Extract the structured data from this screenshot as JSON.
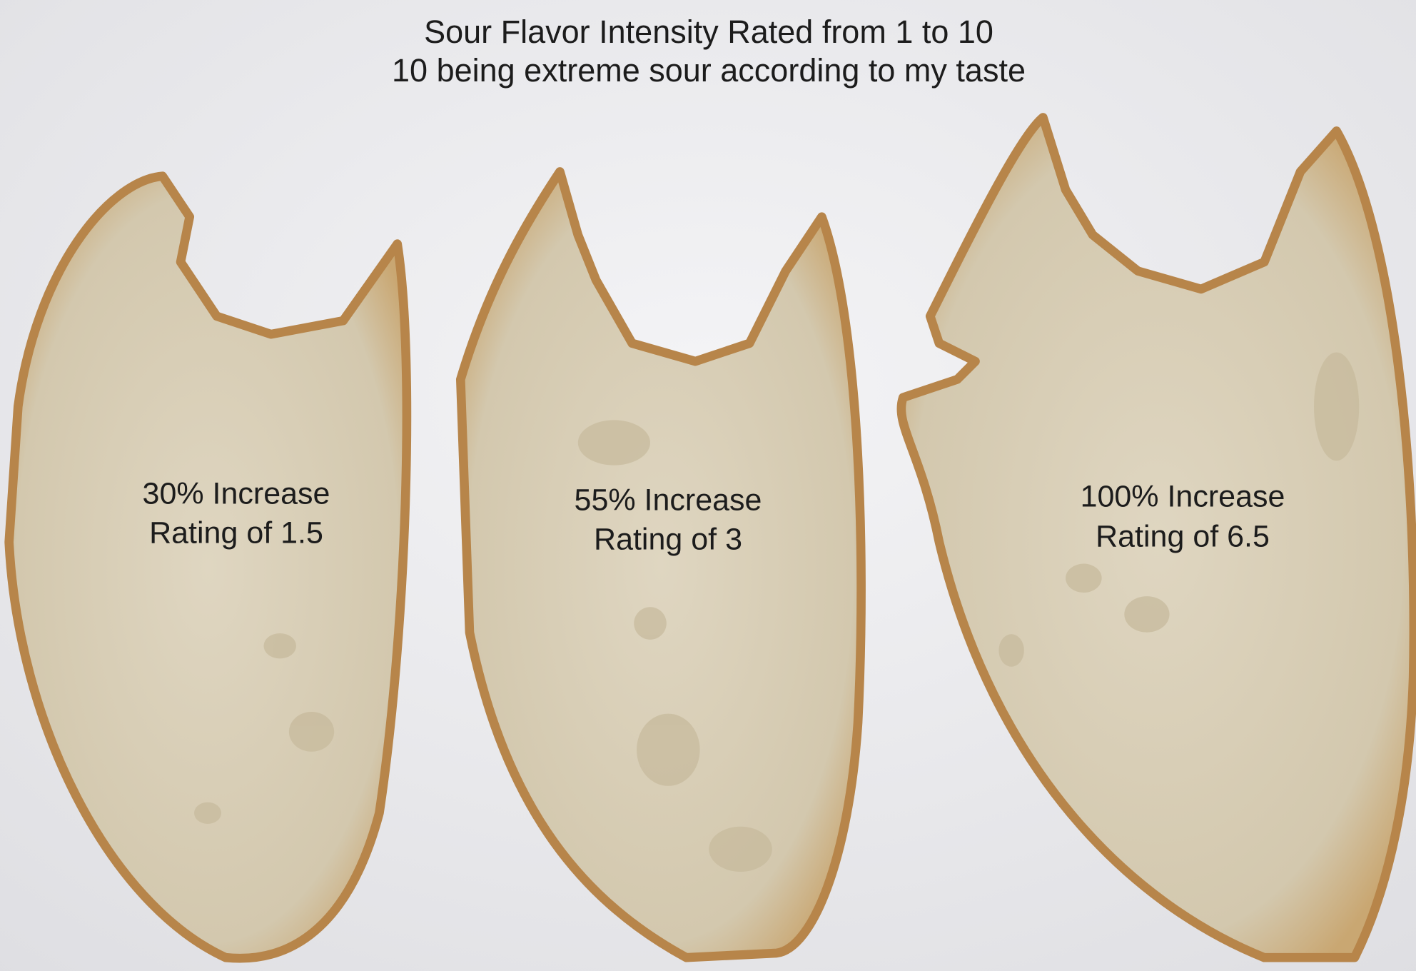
{
  "header": {
    "title_lines": [
      "Sour Flavor Intensity Rated from 1 to 10",
      "10 being extreme sour according to my taste"
    ]
  },
  "slices": [
    {
      "lines": [
        "30% Increase",
        "Rating of 1.5"
      ]
    },
    {
      "lines": [
        "55% Increase",
        "Rating of 3"
      ]
    },
    {
      "lines": [
        "100% Increase",
        "Rating of 6.5"
      ]
    }
  ]
}
